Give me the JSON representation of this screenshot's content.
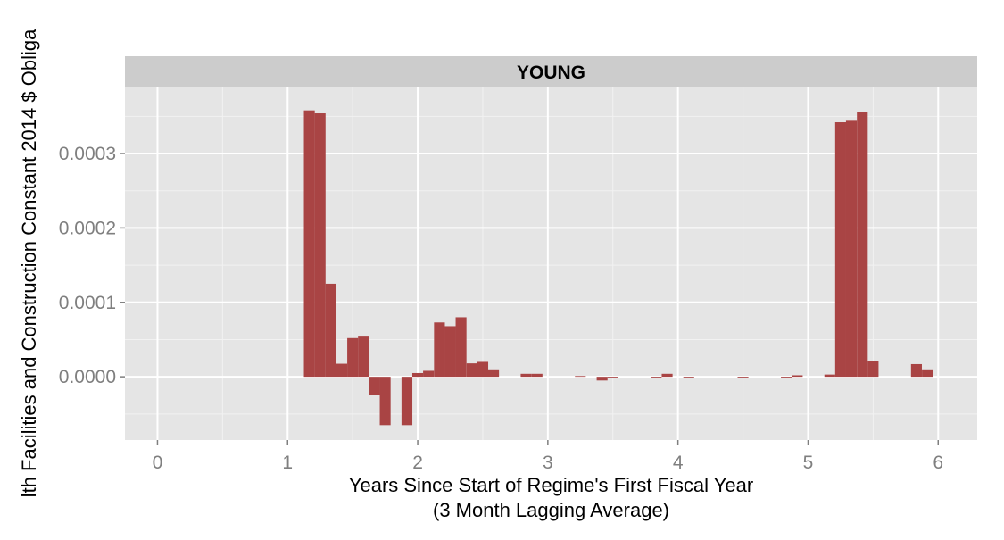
{
  "chart_data": {
    "type": "bar",
    "panel_title": "YOUNG",
    "xlabel_line1": "Years Since Start of Regime's First Fiscal Year",
    "xlabel_line2": "(3 Month Lagging Average)",
    "ylabel": "lth Facilities and Construction Constant 2014 $ Obliga",
    "xlim": [
      -0.25,
      6.3
    ],
    "ylim": [
      -8.5e-05,
      0.00039
    ],
    "x_ticks": [
      0,
      1,
      2,
      3,
      4,
      5,
      6
    ],
    "x_tick_labels": [
      "0",
      "1",
      "2",
      "3",
      "4",
      "5",
      "6"
    ],
    "y_ticks": [
      0.0,
      0.0001,
      0.0002,
      0.0003
    ],
    "y_tick_labels": [
      "0.0000",
      "0.0001",
      "0.0002",
      "0.0003"
    ],
    "bar_width": 0.0833,
    "grid": true,
    "colors": {
      "bar": "#a94444",
      "panel_bg": "#e5e5e5",
      "strip_bg": "#cccccc",
      "grid_major": "#ffffff",
      "grid_minor": "#f2f2f2"
    },
    "x": [
      1.167,
      1.25,
      1.333,
      1.417,
      1.5,
      1.583,
      1.667,
      1.75,
      1.917,
      2.0,
      2.083,
      2.167,
      2.25,
      2.333,
      2.417,
      2.5,
      2.583,
      2.833,
      2.917,
      3.25,
      3.417,
      3.5,
      3.833,
      3.917,
      4.083,
      4.5,
      4.833,
      4.917,
      5.167,
      5.25,
      5.333,
      5.417,
      5.5,
      5.833,
      5.917
    ],
    "values": [
      0.000358,
      0.000354,
      0.000125,
      1.75e-05,
      5.2e-05,
      5.4e-05,
      -2.5e-05,
      -6.5e-05,
      -6.5e-05,
      5e-06,
      8e-06,
      7.3e-05,
      6.8e-05,
      8e-05,
      1.8e-05,
      2e-05,
      1e-05,
      4e-06,
      4e-06,
      1e-06,
      -5e-06,
      -2e-06,
      -2e-06,
      4e-06,
      -1e-06,
      -2e-06,
      -2e-06,
      2e-06,
      3e-06,
      0.000342,
      0.000344,
      0.000356,
      2.1e-05,
      1.7e-05,
      1e-05
    ]
  }
}
